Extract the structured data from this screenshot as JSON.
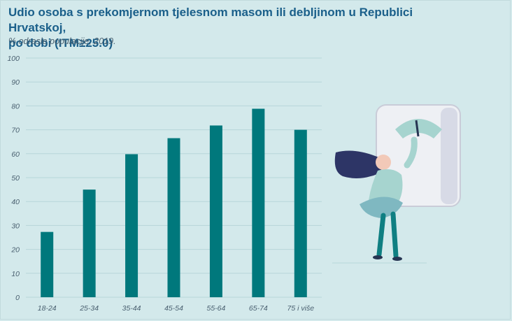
{
  "header": {
    "title_line1": "Udio osoba s prekomjernom tjelesnom masom ili debljinom u Republici Hrvatskoj,",
    "title_line2": "po dobi (ITM≥25.0)",
    "subtitle": "% odrasle populacije, 2019."
  },
  "chart_data": {
    "type": "bar",
    "title": "Udio osoba s prekomjernom tjelesnom masom ili debljinom u Republici Hrvatskoj, po dobi (ITM≥25.0)",
    "subtitle": "% odrasle populacije, 2019.",
    "categories": [
      "18-24",
      "25-34",
      "35-44",
      "45-54",
      "55-64",
      "65-74",
      "75 i više"
    ],
    "values": [
      27.3,
      45.0,
      59.8,
      66.5,
      71.8,
      78.8,
      70.0
    ],
    "ylim": [
      0,
      100
    ],
    "yticks": [
      0,
      10,
      20,
      30,
      40,
      50,
      60,
      70,
      80,
      90,
      100
    ],
    "xlabel": "",
    "ylabel": "",
    "grid": true,
    "colors": {
      "bar": "#00787c",
      "grid": "#b7d6d9",
      "axis_text": "#4a6070"
    }
  },
  "illustration": {
    "icon": "woman-weighing-scale-icon"
  }
}
